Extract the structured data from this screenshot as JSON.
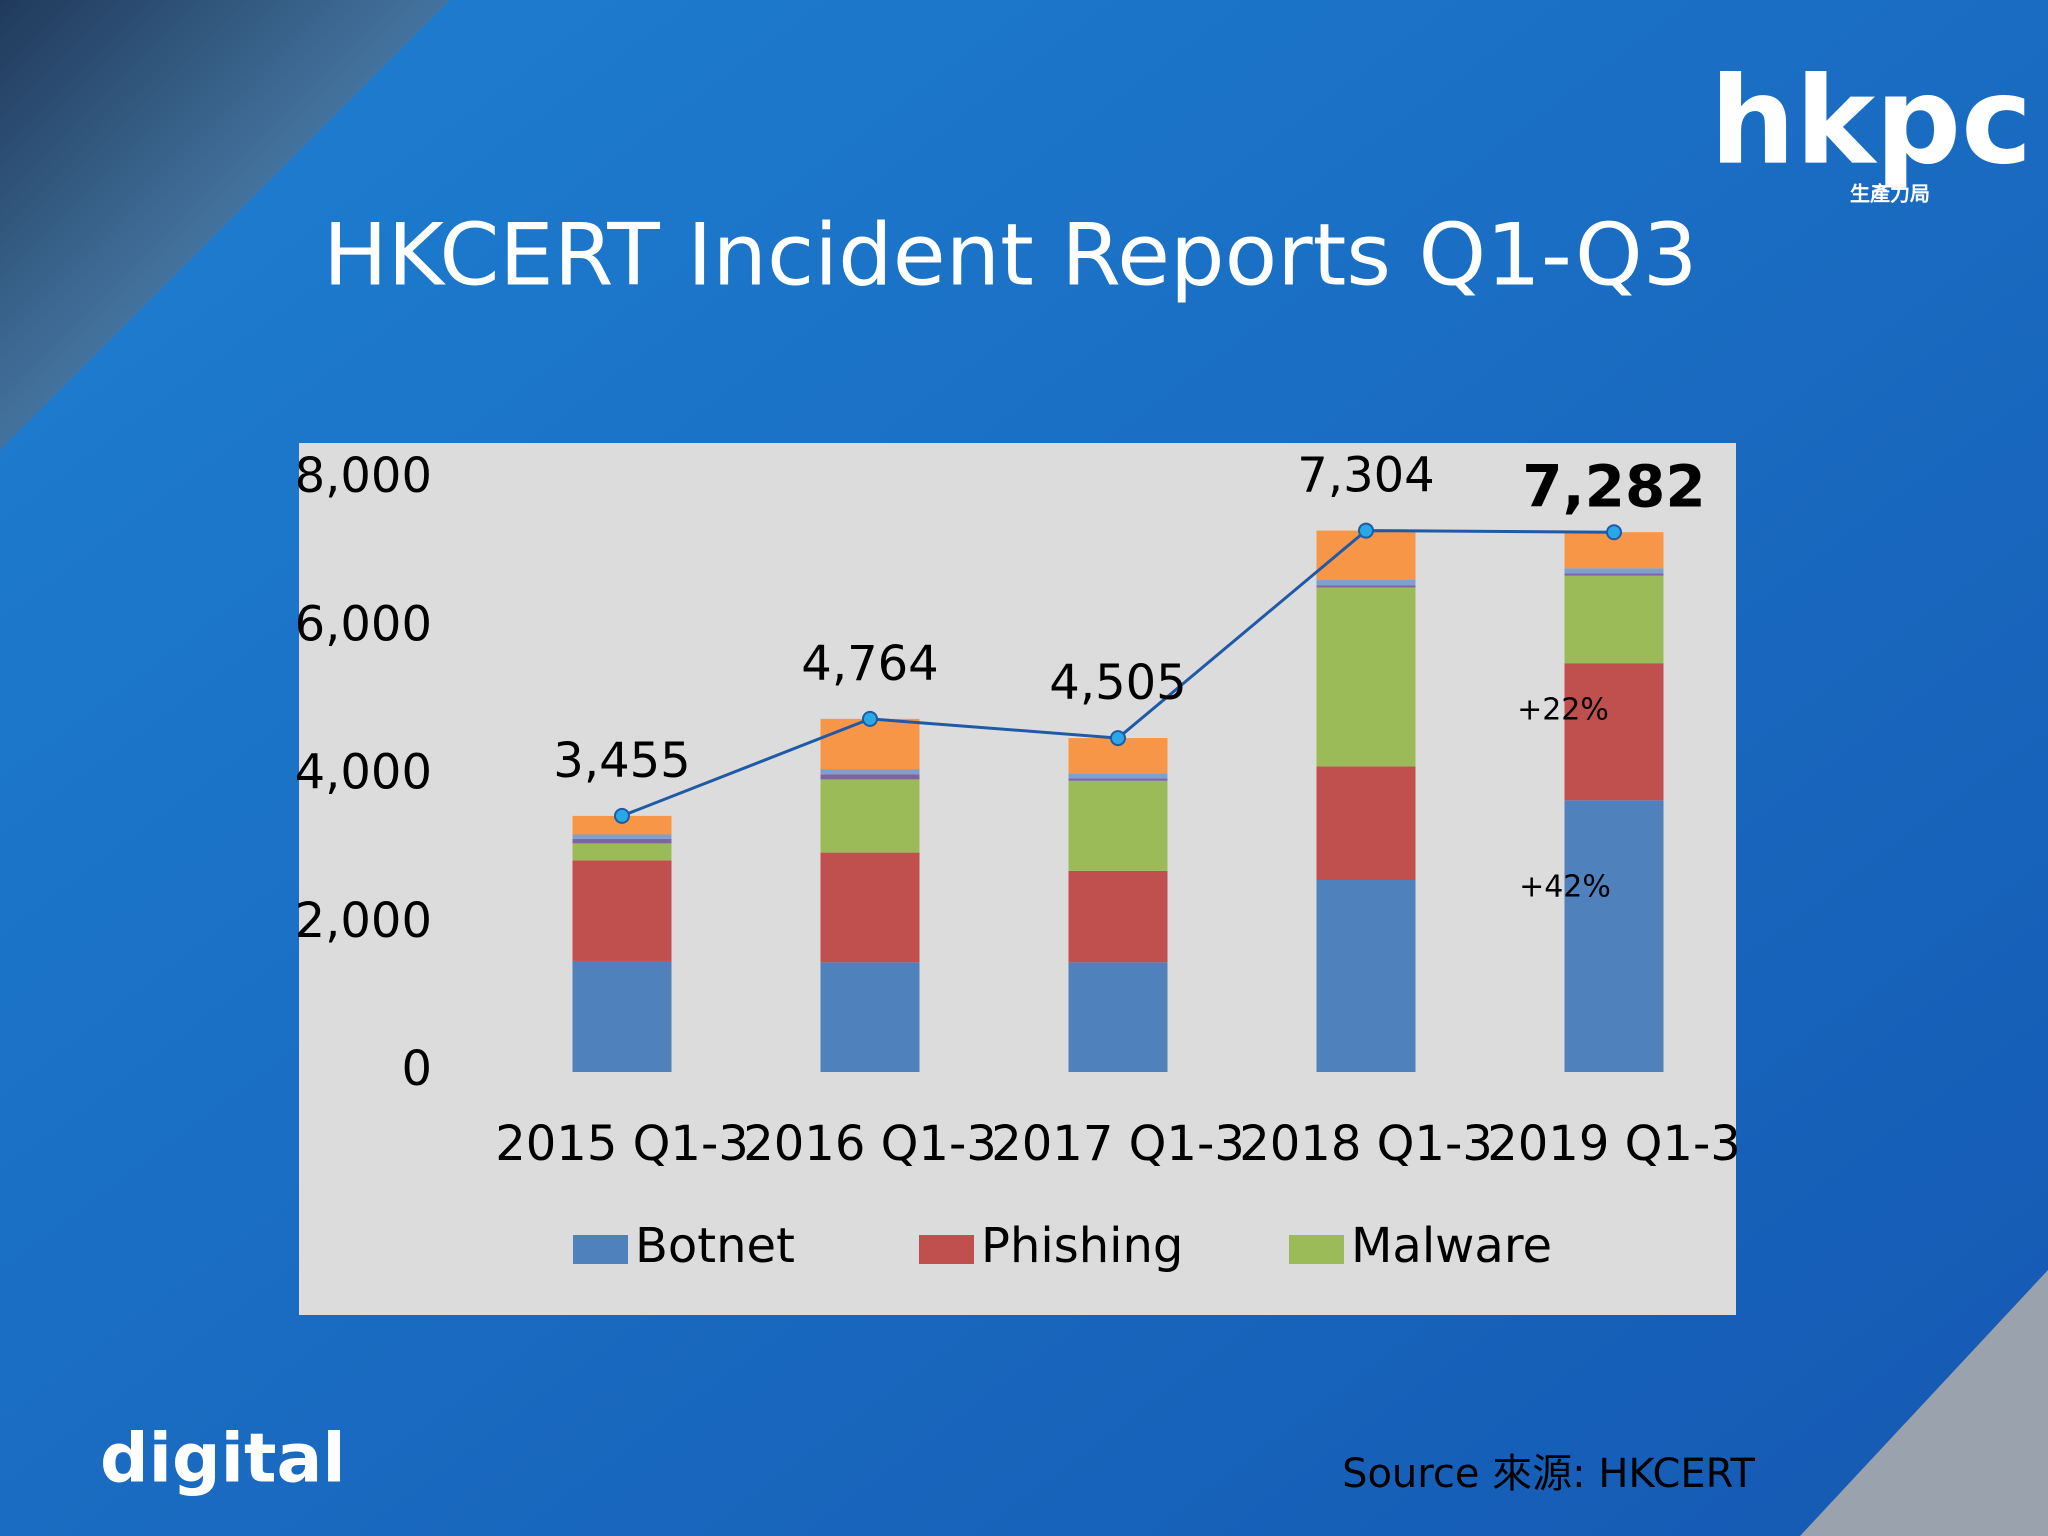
{
  "logos": {
    "brand": "hkpc",
    "brand_sub": "生產力局",
    "footer": "digital"
  },
  "source": "Source 來源: HKCERT",
  "chart_data": {
    "type": "stacked-bar",
    "title": "HKCERT Incident Reports Q1-Q3",
    "categories": [
      "2015 Q1-3",
      "2016 Q1-3",
      "2017 Q1-3",
      "2018 Q1-3",
      "2019 Q1-3"
    ],
    "series": [
      {
        "name": "Botnet",
        "color": "#4f81bd",
        "values": [
          1498,
          1480,
          1480,
          2590,
          3665
        ]
      },
      {
        "name": "Phishing",
        "color": "#c0504d",
        "values": [
          1357,
          1480,
          1233,
          1533,
          1850
        ]
      },
      {
        "name": "Malware",
        "color": "#9bbb59",
        "values": [
          229,
          987,
          1216,
          2414,
          1181
        ]
      },
      {
        "color": "#8064a2",
        "values": [
          60,
          70,
          30,
          30,
          30
        ]
      },
      {
        "color": "#7f9fcf",
        "values": [
          60,
          70,
          70,
          70,
          70
        ]
      },
      {
        "color": "#f79646",
        "values": [
          251,
          677,
          476,
          667,
          486
        ]
      }
    ],
    "totals": {
      "type": "line",
      "color": "#1f5aa6",
      "marker_color": "#29a8e6",
      "values": [
        3455,
        4764,
        4505,
        7304,
        7282
      ],
      "value_labels": [
        "3,455",
        "4,764",
        "4,505",
        "7,304",
        "7,282"
      ]
    },
    "annotations": [
      "+22%",
      "+42%"
    ],
    "ylim": [
      0,
      8000
    ],
    "yticks": [
      0,
      {
        "value": 2000,
        "label": "2,000"
      },
      {
        "value": 4000,
        "label": "4,000"
      },
      {
        "value": 6000,
        "label": "6,000"
      },
      {
        "value": 8000,
        "label": "8,000"
      }
    ],
    "grid": false,
    "legend": "bottom"
  }
}
